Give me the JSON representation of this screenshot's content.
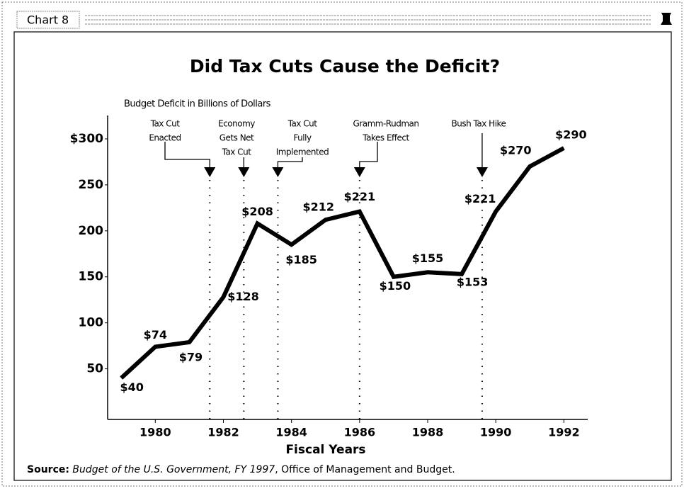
{
  "window": {
    "title": "Chart 8"
  },
  "chart_data": {
    "type": "line",
    "title": "Did Tax Cuts Cause the Deficit?",
    "y_axis_label": "Budget Deficit in Billions of Dollars",
    "x_axis_label": "Fiscal Years",
    "x": [
      1979,
      1980,
      1981,
      1982,
      1983,
      1984,
      1985,
      1986,
      1987,
      1988,
      1989,
      1990,
      1991,
      1992
    ],
    "series": [
      {
        "name": "Budget Deficit",
        "color": "#000000",
        "values": [
          40,
          74,
          79,
          128,
          208,
          185,
          212,
          221,
          150,
          155,
          153,
          221,
          270,
          290
        ],
        "value_labels": [
          "$40",
          "$74",
          "$79",
          "$128",
          "$208",
          "$185",
          "$212",
          "$221",
          "$150",
          "$155",
          "$153",
          "$221",
          "$270",
          "$290"
        ]
      }
    ],
    "xlim": [
      1978.6,
      1992.7
    ],
    "xticks": [
      1980,
      1982,
      1984,
      1986,
      1988,
      1990,
      1992
    ],
    "ylim": [
      -5,
      310
    ],
    "yticks": [
      50,
      100,
      150,
      200,
      250,
      {
        "value": 300,
        "label": "$300"
      }
    ],
    "annotations": [
      {
        "text": [
          "Tax Cut",
          "Enacted"
        ],
        "x": 1981.6
      },
      {
        "text": [
          "Economy",
          "Gets Net",
          "Tax Cut"
        ],
        "x": 1982.6
      },
      {
        "text": [
          "Tax Cut",
          "Fully",
          "Implemented"
        ],
        "x": 1983.6
      },
      {
        "text": [
          "Gramm-Rudman",
          "Takes Effect"
        ],
        "x": 1986.0
      },
      {
        "text": [
          "Bush Tax Hike"
        ],
        "x": 1989.6
      }
    ],
    "source": {
      "label": "Source:",
      "publication": "Budget of the U.S. Government, FY 1997",
      "publisher": ", Office of Management and Budget."
    }
  }
}
